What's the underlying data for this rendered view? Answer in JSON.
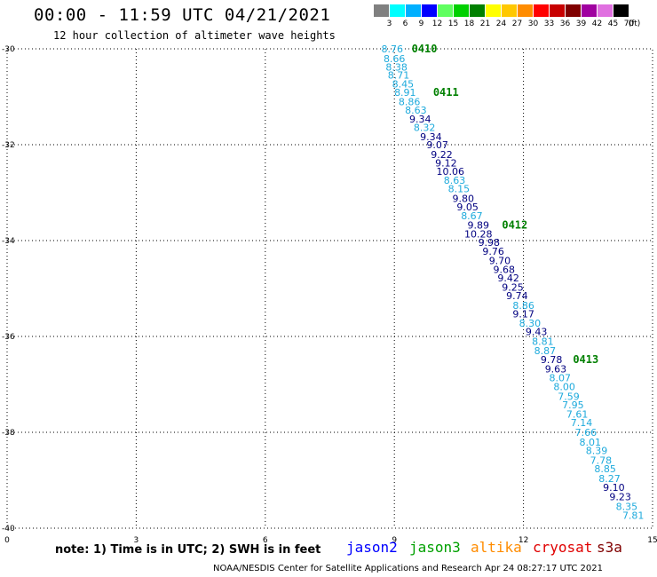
{
  "header": {
    "title": "00:00 - 11:59 UTC 04/21/2021",
    "subtitle": "12 hour collection of altimeter wave heights"
  },
  "legend": {
    "unit": "(ft)",
    "items": [
      {
        "label": "3",
        "color": "#808080"
      },
      {
        "label": "6",
        "color": "#00ffff"
      },
      {
        "label": "9",
        "color": "#00b0ff"
      },
      {
        "label": "12",
        "color": "#0000ff"
      },
      {
        "label": "15",
        "color": "#60ff60"
      },
      {
        "label": "18",
        "color": "#00d000"
      },
      {
        "label": "21",
        "color": "#008000"
      },
      {
        "label": "24",
        "color": "#ffff00"
      },
      {
        "label": "27",
        "color": "#ffc800"
      },
      {
        "label": "30",
        "color": "#ff8c00"
      },
      {
        "label": "33",
        "color": "#ff0000"
      },
      {
        "label": "36",
        "color": "#c80000"
      },
      {
        "label": "39",
        "color": "#800000"
      },
      {
        "label": "42",
        "color": "#a000a0"
      },
      {
        "label": "45",
        "color": "#e070e0"
      },
      {
        "label": "70",
        "color": "#000000"
      }
    ]
  },
  "chart_data": {
    "type": "scatter",
    "xlim": [
      0,
      15
    ],
    "ylim": [
      -40,
      -30
    ],
    "xticks": [
      "0",
      "3",
      "6",
      "9",
      "12",
      "15"
    ],
    "yticks": [
      "-30",
      "-32",
      "-34",
      "-36",
      "-38",
      "-40"
    ],
    "grid": true,
    "colors": {
      "light": "#1eaadc",
      "dark": "#000080",
      "time": "#008000"
    },
    "points": [
      {
        "x": 8.95,
        "y": -30.0,
        "v": "8.76",
        "c": "light"
      },
      {
        "x": 9.0,
        "y": -30.2,
        "v": "8.66",
        "c": "light"
      },
      {
        "x": 9.05,
        "y": -30.38,
        "v": "8.38",
        "c": "light"
      },
      {
        "x": 9.1,
        "y": -30.55,
        "v": "8.71",
        "c": "light"
      },
      {
        "x": 9.2,
        "y": -30.73,
        "v": "8.45",
        "c": "light"
      },
      {
        "x": 9.25,
        "y": -30.91,
        "v": "8.91",
        "c": "light"
      },
      {
        "x": 9.35,
        "y": -31.1,
        "v": "8.86",
        "c": "light"
      },
      {
        "x": 9.5,
        "y": -31.28,
        "v": "8.63",
        "c": "light"
      },
      {
        "x": 9.6,
        "y": -31.46,
        "v": "9.34",
        "c": "dark"
      },
      {
        "x": 9.7,
        "y": -31.64,
        "v": "8.32",
        "c": "light"
      },
      {
        "x": 9.85,
        "y": -31.83,
        "v": "9.34",
        "c": "dark"
      },
      {
        "x": 10.0,
        "y": -32.0,
        "v": "9.07",
        "c": "dark"
      },
      {
        "x": 10.1,
        "y": -32.2,
        "v": "9.22",
        "c": "dark"
      },
      {
        "x": 10.2,
        "y": -32.38,
        "v": "9.12",
        "c": "dark"
      },
      {
        "x": 10.3,
        "y": -32.56,
        "v": "10.06",
        "c": "dark"
      },
      {
        "x": 10.4,
        "y": -32.74,
        "v": "8.63",
        "c": "light"
      },
      {
        "x": 10.5,
        "y": -32.92,
        "v": "8.15",
        "c": "light"
      },
      {
        "x": 10.6,
        "y": -33.12,
        "v": "9.80",
        "c": "dark"
      },
      {
        "x": 10.7,
        "y": -33.3,
        "v": "9.05",
        "c": "dark"
      },
      {
        "x": 10.8,
        "y": -33.48,
        "v": "8.67",
        "c": "light"
      },
      {
        "x": 10.95,
        "y": -33.68,
        "v": "9.89",
        "c": "dark"
      },
      {
        "x": 10.95,
        "y": -33.86,
        "v": "10.28",
        "c": "dark"
      },
      {
        "x": 11.2,
        "y": -34.04,
        "v": "9.98",
        "c": "dark"
      },
      {
        "x": 11.3,
        "y": -34.22,
        "v": "9.76",
        "c": "dark"
      },
      {
        "x": 11.45,
        "y": -34.42,
        "v": "9.70",
        "c": "dark"
      },
      {
        "x": 11.55,
        "y": -34.6,
        "v": "9.68",
        "c": "dark"
      },
      {
        "x": 11.65,
        "y": -34.78,
        "v": "9.42",
        "c": "dark"
      },
      {
        "x": 11.75,
        "y": -34.97,
        "v": "9.25",
        "c": "dark"
      },
      {
        "x": 11.85,
        "y": -35.15,
        "v": "9.74",
        "c": "dark"
      },
      {
        "x": 12.0,
        "y": -35.35,
        "v": "8.86",
        "c": "light"
      },
      {
        "x": 12.0,
        "y": -35.53,
        "v": "9.17",
        "c": "dark"
      },
      {
        "x": 12.15,
        "y": -35.72,
        "v": "8.30",
        "c": "light"
      },
      {
        "x": 12.3,
        "y": -35.9,
        "v": "9.43",
        "c": "dark"
      },
      {
        "x": 12.45,
        "y": -36.1,
        "v": "8.81",
        "c": "light"
      },
      {
        "x": 12.5,
        "y": -36.3,
        "v": "8.87",
        "c": "light"
      },
      {
        "x": 12.65,
        "y": -36.48,
        "v": "9.78",
        "c": "dark"
      },
      {
        "x": 12.75,
        "y": -36.68,
        "v": "9.63",
        "c": "dark"
      },
      {
        "x": 12.85,
        "y": -36.86,
        "v": "8.07",
        "c": "light"
      },
      {
        "x": 12.95,
        "y": -37.05,
        "v": "8.00",
        "c": "light"
      },
      {
        "x": 13.05,
        "y": -37.25,
        "v": "7.59",
        "c": "light"
      },
      {
        "x": 13.15,
        "y": -37.43,
        "v": "7.95",
        "c": "light"
      },
      {
        "x": 13.25,
        "y": -37.62,
        "v": "7.61",
        "c": "light"
      },
      {
        "x": 13.35,
        "y": -37.8,
        "v": "7.14",
        "c": "light"
      },
      {
        "x": 13.45,
        "y": -38.0,
        "v": "7.66",
        "c": "light"
      },
      {
        "x": 13.55,
        "y": -38.2,
        "v": "8.01",
        "c": "light"
      },
      {
        "x": 13.7,
        "y": -38.38,
        "v": "8.39",
        "c": "light"
      },
      {
        "x": 13.8,
        "y": -38.58,
        "v": "7.78",
        "c": "light"
      },
      {
        "x": 13.9,
        "y": -38.76,
        "v": "8.85",
        "c": "light"
      },
      {
        "x": 14.0,
        "y": -38.96,
        "v": "8.27",
        "c": "light"
      },
      {
        "x": 14.1,
        "y": -39.15,
        "v": "9.10",
        "c": "dark"
      },
      {
        "x": 14.25,
        "y": -39.34,
        "v": "9.23",
        "c": "dark"
      },
      {
        "x": 14.4,
        "y": -39.55,
        "v": "8.35",
        "c": "light"
      },
      {
        "x": 14.55,
        "y": -39.73,
        "v": "7.81",
        "c": "light"
      }
    ],
    "time_labels": [
      {
        "x": 9.4,
        "y": -30.0,
        "t": "0410"
      },
      {
        "x": 9.9,
        "y": -30.91,
        "t": "0411"
      },
      {
        "x": 11.5,
        "y": -33.68,
        "t": "0412"
      },
      {
        "x": 13.15,
        "y": -36.48,
        "t": "0413"
      }
    ]
  },
  "footer": {
    "note": "note: 1) Time is in UTC; 2) SWH is in feet",
    "satellites": [
      {
        "name": "jason2",
        "color": "#0000ff"
      },
      {
        "name": "jason3",
        "color": "#00a000"
      },
      {
        "name": "altika",
        "color": "#ff8c00"
      },
      {
        "name": "cryosat",
        "color": "#e00000"
      },
      {
        "name": "s3a",
        "color": "#800000"
      }
    ],
    "credit": "NOAA/NESDIS Center for Satellite Applications and Research    Apr 24 08:27:17 UTC 2021"
  }
}
